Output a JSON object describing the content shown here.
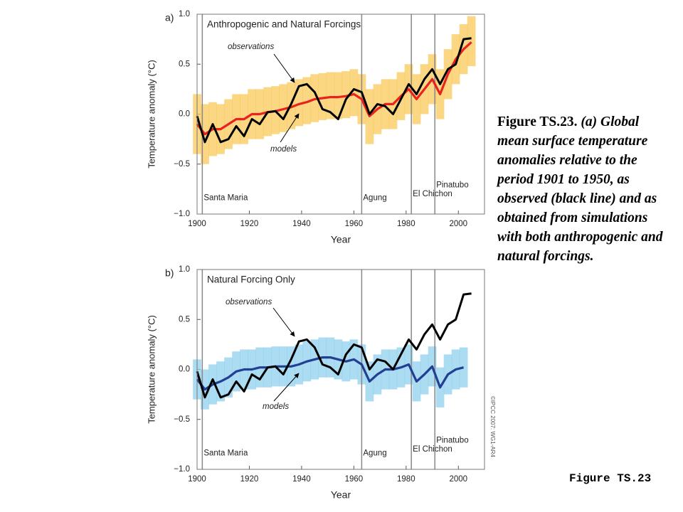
{
  "chart_data": [
    {
      "type": "line",
      "panel": "a)",
      "title": "Anthropogenic and Natural Forcings",
      "xlabel": "Year",
      "ylabel": "Temperature anomaly (°C)",
      "xlim": [
        1900,
        2010
      ],
      "xticks": [
        1900,
        1920,
        1940,
        1960,
        1980,
        2000
      ],
      "ylim": [
        -1,
        1
      ],
      "yticks": [
        {
          "value": 1,
          "label": "1.0"
        },
        {
          "value": 0.5,
          "label": "0.5"
        },
        {
          "value": 0,
          "label": "0.0"
        },
        {
          "value": -0.5,
          "label": "−0.5"
        },
        {
          "value": -1,
          "label": "−1.0"
        }
      ],
      "x": [
        1900,
        1903,
        1906,
        1909,
        1912,
        1915,
        1918,
        1921,
        1924,
        1927,
        1930,
        1933,
        1936,
        1939,
        1942,
        1945,
        1948,
        1951,
        1954,
        1957,
        1960,
        1963,
        1966,
        1969,
        1972,
        1975,
        1978,
        1981,
        1984,
        1987,
        1990,
        1993,
        1996,
        1999,
        2002,
        2005
      ],
      "series": [
        {
          "name": "models",
          "color": "#e8231f",
          "band_color": "#f9c95a",
          "values": [
            -0.1,
            -0.2,
            -0.15,
            -0.15,
            -0.1,
            -0.05,
            -0.05,
            0.0,
            0.0,
            0.02,
            0.03,
            0.05,
            0.07,
            0.1,
            0.12,
            0.15,
            0.16,
            0.17,
            0.17,
            0.18,
            0.2,
            0.15,
            -0.02,
            0.05,
            0.1,
            0.1,
            0.18,
            0.25,
            0.15,
            0.25,
            0.35,
            0.2,
            0.4,
            0.55,
            0.65,
            0.72
          ],
          "lower": [
            -0.4,
            -0.5,
            -0.42,
            -0.4,
            -0.35,
            -0.3,
            -0.3,
            -0.25,
            -0.25,
            -0.22,
            -0.2,
            -0.18,
            -0.15,
            -0.12,
            -0.1,
            -0.08,
            -0.06,
            -0.05,
            -0.05,
            -0.04,
            -0.02,
            -0.1,
            -0.3,
            -0.2,
            -0.15,
            -0.15,
            -0.06,
            0.0,
            -0.1,
            0.0,
            0.1,
            -0.05,
            0.15,
            0.3,
            0.4,
            0.48
          ],
          "upper": [
            0.2,
            0.1,
            0.12,
            0.1,
            0.15,
            0.2,
            0.2,
            0.25,
            0.25,
            0.27,
            0.28,
            0.3,
            0.32,
            0.35,
            0.37,
            0.4,
            0.41,
            0.42,
            0.42,
            0.43,
            0.45,
            0.4,
            0.25,
            0.3,
            0.35,
            0.35,
            0.42,
            0.5,
            0.4,
            0.5,
            0.6,
            0.45,
            0.65,
            0.8,
            0.9,
            0.98
          ]
        },
        {
          "name": "observations",
          "color": "#000000",
          "values": [
            -0.02,
            -0.28,
            -0.1,
            -0.28,
            -0.25,
            -0.12,
            -0.22,
            -0.05,
            -0.1,
            0.02,
            0.03,
            -0.05,
            0.1,
            0.28,
            0.3,
            0.22,
            0.05,
            0.02,
            -0.05,
            0.15,
            0.25,
            0.22,
            0.0,
            0.1,
            0.08,
            0.0,
            0.15,
            0.3,
            0.2,
            0.35,
            0.45,
            0.3,
            0.45,
            0.5,
            0.75,
            0.76
          ]
        }
      ],
      "events": [
        {
          "label": "Santa Maria",
          "x": 1902
        },
        {
          "label": "Agung",
          "x": 1963
        },
        {
          "label": "El Chichon",
          "x": 1982
        },
        {
          "label": "Pinatubo",
          "x": 1991
        }
      ]
    },
    {
      "type": "line",
      "panel": "b)",
      "title": "Natural Forcing Only",
      "xlabel": "Year",
      "ylabel": "Temperature anomaly (°C)",
      "xlim": [
        1900,
        2010
      ],
      "xticks": [
        1900,
        1920,
        1940,
        1960,
        1980,
        2000
      ],
      "ylim": [
        -1,
        1
      ],
      "yticks": [
        {
          "value": 1,
          "label": "1.0"
        },
        {
          "value": 0.5,
          "label": "0.5"
        },
        {
          "value": 0,
          "label": "0.0"
        },
        {
          "value": -0.5,
          "label": "−0.5"
        },
        {
          "value": -1,
          "label": "−1.0"
        }
      ],
      "x": [
        1900,
        1903,
        1906,
        1909,
        1912,
        1915,
        1918,
        1921,
        1924,
        1927,
        1930,
        1933,
        1936,
        1939,
        1942,
        1945,
        1948,
        1951,
        1954,
        1957,
        1960,
        1963,
        1966,
        1969,
        1972,
        1975,
        1978,
        1981,
        1984,
        1987,
        1990,
        1993,
        1996,
        1999,
        2002,
        2005
      ],
      "series": [
        {
          "name": "models",
          "color": "#223f94",
          "band_color": "#8fd0ee",
          "values": [
            -0.1,
            -0.2,
            -0.15,
            -0.12,
            -0.08,
            -0.02,
            0.0,
            0.0,
            0.02,
            0.02,
            0.03,
            0.03,
            0.03,
            0.05,
            0.08,
            0.1,
            0.12,
            0.12,
            0.1,
            0.08,
            0.1,
            0.05,
            -0.12,
            -0.05,
            0.0,
            0.0,
            0.02,
            0.05,
            -0.12,
            -0.05,
            0.03,
            -0.18,
            -0.05,
            0.0,
            0.02,
            null
          ],
          "lower": [
            -0.3,
            -0.4,
            -0.35,
            -0.32,
            -0.28,
            -0.22,
            -0.2,
            -0.2,
            -0.18,
            -0.18,
            -0.17,
            -0.17,
            -0.17,
            -0.15,
            -0.12,
            -0.1,
            -0.08,
            -0.08,
            -0.1,
            -0.12,
            -0.1,
            -0.15,
            -0.32,
            -0.25,
            -0.2,
            -0.2,
            -0.18,
            -0.15,
            -0.32,
            -0.25,
            -0.17,
            -0.38,
            -0.25,
            -0.2,
            -0.18,
            null
          ],
          "upper": [
            0.1,
            0.0,
            0.05,
            0.08,
            0.12,
            0.18,
            0.2,
            0.2,
            0.22,
            0.22,
            0.23,
            0.23,
            0.23,
            0.25,
            0.28,
            0.3,
            0.32,
            0.32,
            0.3,
            0.28,
            0.3,
            0.25,
            0.08,
            0.15,
            0.2,
            0.2,
            0.22,
            0.25,
            0.08,
            0.15,
            0.23,
            0.02,
            0.15,
            0.2,
            0.22,
            null
          ]
        },
        {
          "name": "observations",
          "color": "#000000",
          "values": [
            -0.02,
            -0.28,
            -0.1,
            -0.28,
            -0.25,
            -0.12,
            -0.22,
            -0.05,
            -0.1,
            0.02,
            0.03,
            -0.05,
            0.1,
            0.28,
            0.3,
            0.22,
            0.05,
            0.02,
            -0.05,
            0.15,
            0.25,
            0.22,
            0.0,
            0.1,
            0.08,
            0.0,
            0.15,
            0.3,
            0.2,
            0.35,
            0.45,
            0.3,
            0.45,
            0.5,
            0.75,
            0.76
          ]
        }
      ],
      "events": [
        {
          "label": "Santa Maria",
          "x": 1902
        },
        {
          "label": "Agung",
          "x": 1963
        },
        {
          "label": "El Chichon",
          "x": 1982
        },
        {
          "label": "Pinatubo",
          "x": 1991
        }
      ]
    }
  ],
  "caption": {
    "label": "Figure TS.23.",
    "text": "(a) Global mean surface temperature anomalies relative to the period 1901 to 1950, as observed (black line) and as obtained from simulations with both anthropogenic and natural forcings."
  },
  "copyright": "©IPCC 2007: WG1-AR4",
  "footer": "Figure TS.23"
}
